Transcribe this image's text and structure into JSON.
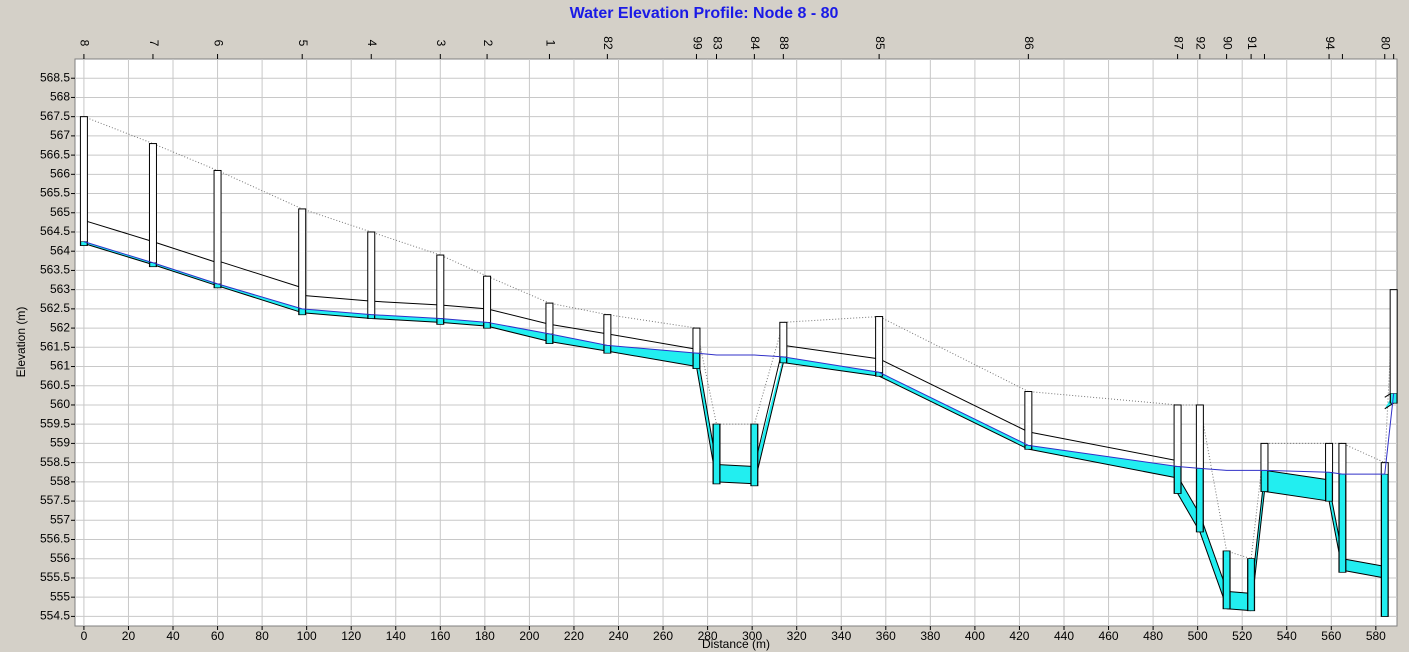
{
  "chart_data": {
    "type": "profile",
    "title": "Water Elevation Profile:  Node 8 - 80",
    "xlabel": "Distance (m)",
    "ylabel": "Elevation (m)",
    "xlim": [
      -4,
      589.5
    ],
    "ylim": [
      554.25,
      569.0
    ],
    "xticks": [
      0,
      20,
      40,
      60,
      80,
      100,
      120,
      140,
      160,
      180,
      200,
      220,
      240,
      260,
      280,
      300,
      320,
      340,
      360,
      380,
      400,
      420,
      440,
      460,
      480,
      500,
      520,
      540,
      560,
      580
    ],
    "yticks": [
      554.5,
      555,
      555.5,
      556,
      556.5,
      557,
      557.5,
      558,
      558.5,
      559,
      559.5,
      560,
      560.5,
      561,
      561.5,
      562,
      562.5,
      563,
      563.5,
      564,
      564.5,
      565,
      565.5,
      566,
      566.5,
      567,
      567.5,
      568,
      568.5
    ],
    "grid": true,
    "water_color": "#22eef0",
    "hgl_color": "#3030c8",
    "nodes": {
      "labels": [
        "8",
        "7",
        "6",
        "5",
        "4",
        "3",
        "2",
        "1",
        "82",
        "99",
        "83",
        "84",
        "88",
        "85",
        "86",
        "87",
        "92",
        "90",
        "91",
        null,
        "94",
        null,
        "80",
        null
      ],
      "x": [
        0,
        31,
        60,
        98,
        129,
        160,
        181,
        209,
        235,
        275,
        284,
        301,
        314,
        357,
        424,
        491,
        501,
        513,
        524,
        530,
        559,
        565,
        584,
        588
      ],
      "invert": [
        564.15,
        563.6,
        563.05,
        562.35,
        562.25,
        562.1,
        562.0,
        561.6,
        561.35,
        560.95,
        557.95,
        557.9,
        561.1,
        560.75,
        558.85,
        557.7,
        556.7,
        554.7,
        554.65,
        557.75,
        557.5,
        555.65,
        554.5,
        560.05
      ],
      "rim": [
        567.5,
        566.8,
        566.1,
        565.1,
        564.5,
        563.9,
        563.35,
        562.65,
        562.35,
        562.0,
        559.5,
        559.5,
        562.15,
        562.3,
        560.35,
        560.0,
        560.0,
        556.2,
        556.0,
        559.0,
        559.0,
        559.0,
        558.5,
        563.0
      ],
      "water": [
        564.25,
        563.7,
        563.15,
        562.5,
        562.35,
        562.25,
        562.15,
        561.85,
        561.55,
        561.35,
        561.3,
        561.3,
        561.25,
        560.85,
        558.95,
        558.4,
        558.35,
        558.3,
        558.3,
        558.3,
        558.25,
        558.2,
        558.2,
        560.3
      ]
    },
    "links": {
      "from_invert": [
        564.2,
        563.65,
        563.1,
        562.4,
        562.25,
        562.15,
        562.05,
        561.65,
        561.4,
        561.0,
        558.0,
        557.95,
        561.1,
        560.75,
        558.85,
        557.7,
        556.7,
        554.7,
        554.65,
        557.75,
        557.5,
        555.7,
        559.9
      ],
      "to_invert": [
        563.65,
        563.1,
        562.4,
        562.25,
        562.15,
        562.05,
        561.65,
        561.4,
        561.0,
        558.0,
        557.95,
        561.1,
        560.75,
        558.85,
        558.1,
        556.7,
        554.75,
        554.65,
        557.75,
        557.5,
        555.7,
        555.5,
        560.05
      ],
      "height": [
        0.6,
        0.6,
        0.65,
        0.45,
        0.45,
        0.45,
        0.45,
        0.45,
        0.45,
        0.45,
        0.45,
        0.45,
        0.45,
        0.45,
        0.45,
        0.45,
        0.45,
        0.45,
        0.45,
        0.55,
        0.4,
        0.3,
        0.3
      ]
    }
  }
}
